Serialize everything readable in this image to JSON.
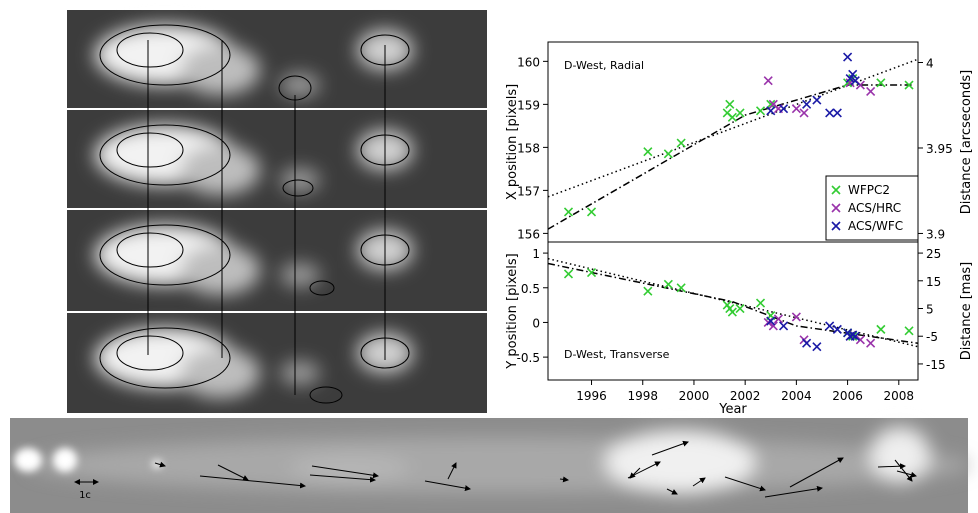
{
  "chart_data": [
    {
      "type": "scatter",
      "title": "D-West, Radial",
      "y_label": "X position [pixels]",
      "y2_label": "Distance [arcseconds]",
      "xlim": [
        1994.3,
        2008.75
      ],
      "ylim": [
        155.8,
        160.45
      ],
      "yticks": [
        156,
        157,
        158,
        159,
        160
      ],
      "y2lim": [
        3.895,
        4.012
      ],
      "y2ticks": [
        3.9,
        3.95,
        4
      ],
      "legend": "right",
      "series": [
        {
          "name": "WFPC2",
          "color": "#33cc33",
          "x": [
            1995.1,
            1996.0,
            1998.2,
            1999.0,
            1999.5,
            2001.3,
            2001.4,
            2001.5,
            2001.8,
            2002.6,
            2003.0,
            2006.0,
            2006.2,
            2007.3,
            2008.4
          ],
          "values": [
            156.5,
            156.5,
            157.9,
            157.85,
            158.1,
            158.8,
            159.0,
            158.7,
            158.8,
            158.85,
            159.0,
            159.5,
            159.6,
            159.5,
            159.45
          ]
        },
        {
          "name": "ACS/HRC",
          "color": "#9933aa",
          "x": [
            2002.9,
            2003.1,
            2003.3,
            2004.0,
            2004.3,
            2006.1,
            2006.5,
            2006.9
          ],
          "values": [
            159.55,
            159.0,
            158.9,
            158.9,
            158.8,
            159.5,
            159.45,
            159.3
          ]
        },
        {
          "name": "ACS/WFC",
          "color": "#1a1aa6",
          "x": [
            2003.0,
            2003.5,
            2004.4,
            2004.8,
            2005.3,
            2005.6,
            2006.0,
            2006.1,
            2006.2,
            2006.3
          ],
          "values": [
            158.85,
            158.9,
            159.0,
            159.1,
            158.8,
            158.8,
            160.1,
            159.6,
            159.7,
            159.55
          ]
        }
      ],
      "fits": [
        {
          "style": "dotted",
          "x": [
            1994.3,
            2008.75
          ],
          "values": [
            156.85,
            160.05
          ]
        },
        {
          "style": "dashdot",
          "x": [
            1994.3,
            2002.0,
            2006.0,
            2008.5
          ],
          "values": [
            156.1,
            158.75,
            159.45,
            159.45
          ]
        }
      ]
    },
    {
      "type": "scatter",
      "title": "D-West, Transverse",
      "x_label": "Year",
      "y_label": "Y position [pixels]",
      "y2_label": "Distance [mas]",
      "xlim": [
        1994.3,
        2008.75
      ],
      "xticks": [
        1996,
        1998,
        2000,
        2002,
        2004,
        2006,
        2008
      ],
      "ylim": [
        -0.83,
        1.16
      ],
      "yticks": [
        -0.5,
        0,
        0.5,
        1
      ],
      "y2lim": [
        -20.8,
        29
      ],
      "y2ticks": [
        -15,
        -5,
        5,
        15,
        25
      ],
      "series": [
        {
          "name": "WFPC2",
          "color": "#33cc33",
          "x": [
            1995.1,
            1996.0,
            1998.2,
            1999.0,
            1999.5,
            2001.3,
            2001.4,
            2001.5,
            2001.8,
            2002.6,
            2003.0,
            2006.0,
            2006.2,
            2007.3,
            2008.4
          ],
          "values": [
            0.7,
            0.72,
            0.45,
            0.55,
            0.5,
            0.25,
            0.2,
            0.15,
            0.2,
            0.28,
            0.1,
            -0.15,
            -0.2,
            -0.1,
            -0.12
          ]
        },
        {
          "name": "ACS/HRC",
          "color": "#9933aa",
          "x": [
            2002.9,
            2003.1,
            2003.3,
            2004.0,
            2004.3,
            2006.1,
            2006.5,
            2006.9
          ],
          "values": [
            0.0,
            -0.05,
            0.05,
            0.08,
            -0.25,
            -0.2,
            -0.25,
            -0.3
          ]
        },
        {
          "name": "ACS/WFC",
          "color": "#1a1aa6",
          "x": [
            2003.0,
            2003.5,
            2004.4,
            2004.8,
            2005.3,
            2005.6,
            2006.0,
            2006.1,
            2006.2,
            2006.3
          ],
          "values": [
            0.02,
            -0.05,
            -0.3,
            -0.35,
            -0.05,
            -0.1,
            -0.15,
            -0.2,
            -0.18,
            -0.2
          ]
        }
      ],
      "fits": [
        {
          "style": "dotted",
          "x": [
            1994.3,
            2008.75
          ],
          "values": [
            0.92,
            -0.35
          ]
        },
        {
          "style": "dashdot",
          "x": [
            1994.3,
            2001.5,
            2004.0,
            2008.75
          ],
          "values": [
            0.85,
            0.3,
            -0.05,
            -0.3
          ]
        }
      ]
    }
  ],
  "jet_image": {
    "scale_label": "1c"
  }
}
